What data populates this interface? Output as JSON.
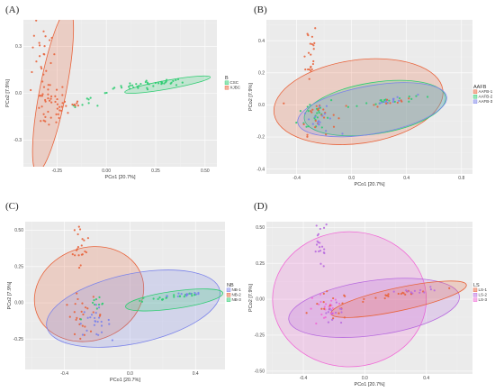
{
  "chart_data": [
    {
      "type": "scatter",
      "panel_label": "(A)",
      "xlabel": "PCo1 [20.7%]",
      "ylabel": "PCo2 [7.9%]",
      "xlim": [
        -0.42,
        0.56
      ],
      "ylim": [
        -0.47,
        0.47
      ],
      "x_ticks": [
        -0.25,
        0.0,
        0.25,
        0.5
      ],
      "x_tick_labels": [
        "-0.25",
        "0.00",
        "0.25",
        "0.50"
      ],
      "y_ticks": [
        -0.3,
        0.0,
        0.3
      ],
      "y_tick_labels": [
        "-0.3",
        "0.0",
        "0.3"
      ],
      "grid": true,
      "legend": {
        "title": "B",
        "placement": "right",
        "labels": [
          "CSC",
          "XJBC"
        ]
      },
      "colors": [
        "#2ecc71",
        "#e8643c"
      ],
      "ellipses": [
        {
          "series": 0,
          "cx": 0.31,
          "cy": 0.055,
          "rx": 0.22,
          "ry": 0.028,
          "angle": -10
        },
        {
          "series": 1,
          "cx": -0.27,
          "cy": 0.02,
          "rx": 0.42,
          "ry": 0.085,
          "angle": -79
        }
      ],
      "clusters": [
        {
          "series": 0,
          "cx": 0.24,
          "cy": 0.06,
          "sx": 0.1,
          "sy": 0.012,
          "n": 40,
          "tilt": 0.12
        },
        {
          "series": 0,
          "cx": -0.08,
          "cy": -0.05,
          "sx": 0.05,
          "sy": 0.02,
          "n": 10,
          "tilt": 0.3
        },
        {
          "series": 1,
          "cx": -0.29,
          "cy": -0.08,
          "sx": 0.045,
          "sy": 0.08,
          "n": 45,
          "tilt": 0
        },
        {
          "series": 1,
          "cx": -0.32,
          "cy": 0.27,
          "sx": 0.03,
          "sy": 0.09,
          "n": 20,
          "tilt": 0
        },
        {
          "series": 1,
          "cx": -0.18,
          "cy": -0.07,
          "sx": 0.03,
          "sy": 0.03,
          "n": 10,
          "tilt": 0
        }
      ]
    },
    {
      "type": "scatter",
      "panel_label": "(B)",
      "xlabel": "PCo1 [20.7%]",
      "ylabel": "PCo2 [7.9%]",
      "xlim": [
        -0.62,
        0.88
      ],
      "ylim": [
        -0.43,
        0.53
      ],
      "x_ticks": [
        -0.4,
        0.0,
        0.4,
        0.8
      ],
      "x_tick_labels": [
        "-0.4",
        "0.0",
        "0.4",
        "0.8"
      ],
      "y_ticks": [
        -0.4,
        -0.2,
        0.0,
        0.2,
        0.4
      ],
      "y_tick_labels": [
        "-0.4",
        "-0.2",
        "0.0",
        "0.2",
        "0.4"
      ],
      "grid": true,
      "legend": {
        "title": "AAFB",
        "placement": "right",
        "labels": [
          "AAFB-1",
          "AAFB-2",
          "AAFB-3"
        ]
      },
      "colors": [
        "#e8643c",
        "#2ecc71",
        "#7b83ea"
      ],
      "ellipses": [
        {
          "series": 0,
          "cx": 0.05,
          "cy": 0.02,
          "rx": 0.62,
          "ry": 0.26,
          "angle": -8
        },
        {
          "series": 1,
          "cx": 0.17,
          "cy": -0.02,
          "rx": 0.52,
          "ry": 0.16,
          "angle": -9
        },
        {
          "series": 2,
          "cx": 0.15,
          "cy": -0.03,
          "rx": 0.55,
          "ry": 0.15,
          "angle": -10
        }
      ],
      "clusters": [
        {
          "series": 0,
          "cx": -0.31,
          "cy": 0.33,
          "sx": 0.03,
          "sy": 0.1,
          "n": 22,
          "tilt": 0
        },
        {
          "series": 1,
          "cx": -0.25,
          "cy": -0.06,
          "sx": 0.07,
          "sy": 0.06,
          "n": 22,
          "tilt": 0
        },
        {
          "series": 0,
          "cx": -0.25,
          "cy": -0.06,
          "sx": 0.07,
          "sy": 0.06,
          "n": 22,
          "tilt": 0
        },
        {
          "series": 2,
          "cx": -0.23,
          "cy": -0.1,
          "sx": 0.06,
          "sy": 0.04,
          "n": 16,
          "tilt": 0
        },
        {
          "series": 1,
          "cx": 0.22,
          "cy": 0.02,
          "sx": 0.12,
          "sy": 0.012,
          "n": 20,
          "tilt": 0.1
        },
        {
          "series": 2,
          "cx": 0.32,
          "cy": 0.03,
          "sx": 0.08,
          "sy": 0.01,
          "n": 14,
          "tilt": 0.1
        },
        {
          "series": 0,
          "cx": 0.25,
          "cy": 0.02,
          "sx": 0.1,
          "sy": 0.012,
          "n": 10,
          "tilt": 0.1
        }
      ]
    },
    {
      "type": "scatter",
      "panel_label": "(C)",
      "xlabel": "PCo1 [20.7%]",
      "ylabel": "PCo2 [7.9%]",
      "xlim": [
        -0.64,
        0.58
      ],
      "ylim": [
        -0.46,
        0.56
      ],
      "x_ticks": [
        -0.4,
        0.0,
        0.4
      ],
      "x_tick_labels": [
        "-0.4",
        "0.0",
        "0.4"
      ],
      "y_ticks": [
        -0.25,
        0.0,
        0.25,
        0.5
      ],
      "y_tick_labels": [
        "-0.25",
        "0.00",
        "0.25",
        "0.50"
      ],
      "grid": true,
      "legend": {
        "title": "NB",
        "placement": "right",
        "labels": [
          "NB-1",
          "NB-2",
          "NB-3"
        ]
      },
      "colors": [
        "#7b83ea",
        "#e8643c",
        "#2ecc71"
      ],
      "ellipses": [
        {
          "series": 1,
          "cx": -0.25,
          "cy": 0.06,
          "rx": 0.34,
          "ry": 0.32,
          "angle": -20
        },
        {
          "series": 0,
          "cx": 0.02,
          "cy": -0.04,
          "rx": 0.54,
          "ry": 0.24,
          "angle": -12
        },
        {
          "series": 2,
          "cx": 0.27,
          "cy": 0.02,
          "rx": 0.3,
          "ry": 0.06,
          "angle": -8
        }
      ],
      "clusters": [
        {
          "series": 1,
          "cx": -0.3,
          "cy": 0.37,
          "sx": 0.025,
          "sy": 0.09,
          "n": 22,
          "tilt": 0
        },
        {
          "series": 1,
          "cx": -0.28,
          "cy": -0.09,
          "sx": 0.06,
          "sy": 0.06,
          "n": 24,
          "tilt": 0
        },
        {
          "series": 0,
          "cx": -0.22,
          "cy": -0.13,
          "sx": 0.05,
          "sy": 0.05,
          "n": 24,
          "tilt": 0
        },
        {
          "series": 2,
          "cx": -0.2,
          "cy": -0.04,
          "sx": 0.05,
          "sy": 0.04,
          "n": 10,
          "tilt": 0
        },
        {
          "series": 2,
          "cx": 0.25,
          "cy": 0.04,
          "sx": 0.12,
          "sy": 0.012,
          "n": 22,
          "tilt": 0.1
        },
        {
          "series": 0,
          "cx": 0.35,
          "cy": 0.06,
          "sx": 0.06,
          "sy": 0.01,
          "n": 14,
          "tilt": 0.1
        }
      ]
    },
    {
      "type": "scatter",
      "panel_label": "(D)",
      "xlabel": "PCo1 [20.7%]",
      "ylabel": "PCo2 [7.9%]",
      "xlim": [
        -0.64,
        0.7
      ],
      "ylim": [
        -0.52,
        0.54
      ],
      "x_ticks": [
        -0.4,
        0.0,
        0.4
      ],
      "x_tick_labels": [
        "-0.4",
        "0.0",
        "0.4"
      ],
      "y_ticks": [
        -0.5,
        -0.25,
        0.0,
        0.25,
        0.5
      ],
      "y_tick_labels": [
        "-0.50",
        "-0.25",
        "0.00",
        "0.25",
        "0.50"
      ],
      "grid": true,
      "legend": {
        "title": "LS",
        "placement": "right",
        "labels": [
          "LS-1",
          "LS-2",
          "LS-3"
        ]
      },
      "colors": [
        "#e8643c",
        "#b86bdf",
        "#f06ad6"
      ],
      "ellipses": [
        {
          "series": 2,
          "cx": -0.1,
          "cy": 0.0,
          "rx": 0.5,
          "ry": 0.47,
          "angle": 0
        },
        {
          "series": 1,
          "cx": 0.06,
          "cy": -0.06,
          "rx": 0.56,
          "ry": 0.19,
          "angle": -8
        },
        {
          "series": 0,
          "cx": 0.22,
          "cy": 0.0,
          "rx": 0.45,
          "ry": 0.08,
          "angle": -12
        }
      ],
      "clusters": [
        {
          "series": 1,
          "cx": -0.29,
          "cy": 0.38,
          "sx": 0.025,
          "sy": 0.09,
          "n": 22,
          "tilt": 0
        },
        {
          "series": 2,
          "cx": -0.26,
          "cy": -0.08,
          "sx": 0.06,
          "sy": 0.06,
          "n": 22,
          "tilt": 0
        },
        {
          "series": 0,
          "cx": -0.22,
          "cy": -0.05,
          "sx": 0.06,
          "sy": 0.05,
          "n": 18,
          "tilt": 0
        },
        {
          "series": 1,
          "cx": -0.2,
          "cy": -0.12,
          "sx": 0.05,
          "sy": 0.04,
          "n": 14,
          "tilt": 0
        },
        {
          "series": 0,
          "cx": 0.26,
          "cy": 0.04,
          "sx": 0.12,
          "sy": 0.012,
          "n": 20,
          "tilt": 0.1
        },
        {
          "series": 1,
          "cx": 0.36,
          "cy": 0.06,
          "sx": 0.06,
          "sy": 0.01,
          "n": 12,
          "tilt": 0.1
        }
      ]
    }
  ]
}
